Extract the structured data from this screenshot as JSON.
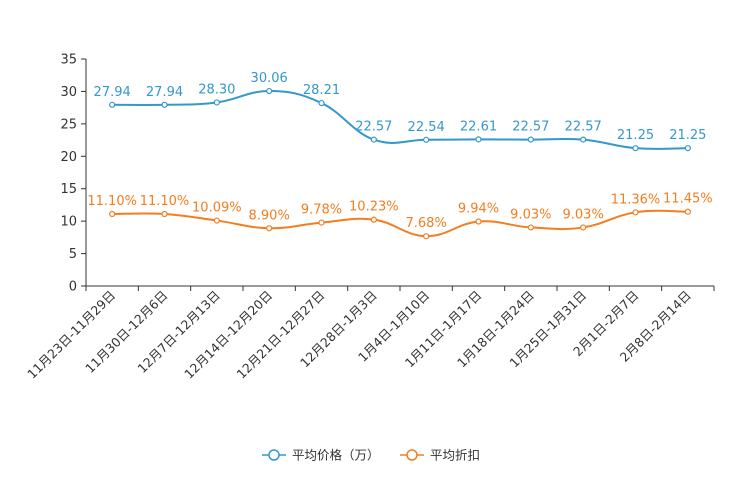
{
  "chart_data": {
    "type": "line",
    "categories": [
      "11月23日-11月29日",
      "11月30日-12月6日",
      "12月7日-12月13日",
      "12月14日-12月20日",
      "12月21日-12月27日",
      "12月28日-1月3日",
      "1月4日-1月10日",
      "1月11日-1月17日",
      "1月18日-1月24日",
      "1月25日-1月31日",
      "2月1日-2月7日",
      "2月8日-2月14日"
    ],
    "series": [
      {
        "name": "平均价格（万）",
        "color": "#3398cc",
        "values": [
          27.94,
          27.94,
          28.3,
          30.06,
          28.21,
          22.57,
          22.54,
          22.61,
          22.57,
          22.57,
          21.25,
          21.25
        ],
        "labels": [
          "27.94",
          "27.94",
          "28.30",
          "30.06",
          "28.21",
          "22.57",
          "22.54",
          "22.61",
          "22.57",
          "22.57",
          "21.25",
          "21.25"
        ]
      },
      {
        "name": "平均折扣",
        "color": "#f47d1f",
        "values": [
          11.1,
          11.1,
          10.09,
          8.9,
          9.78,
          10.23,
          7.68,
          9.94,
          9.03,
          9.03,
          11.36,
          11.45
        ],
        "labels": [
          "11.10%",
          "11.10%",
          "10.09%",
          "8.90%",
          "9.78%",
          "10.23%",
          "7.68%",
          "9.94%",
          "9.03%",
          "9.03%",
          "11.36%",
          "11.45%"
        ]
      }
    ],
    "yticks": [
      "0",
      "5",
      "10",
      "15",
      "20",
      "25",
      "30",
      "35"
    ],
    "ylim": [
      0,
      35
    ],
    "title": "",
    "xlabel": "",
    "ylabel": "",
    "grid": false,
    "legend_position": "bottom-center"
  }
}
